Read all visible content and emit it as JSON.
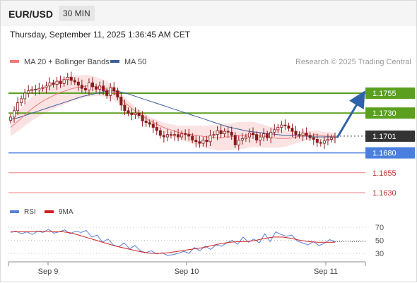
{
  "header": {
    "symbol": "EUR/USD",
    "timeframe": "30 MIN",
    "timestamp": "Thursday, September 11, 2025 1:36:45 AM CET"
  },
  "colors": {
    "ma20": "#f07878",
    "ma50": "#3a5f9a",
    "bollinger_fill": "#fadcdc",
    "candle": "#8b1a1a",
    "resistance": "#5aa01e",
    "support": "#4a7fe0",
    "support_light": "#f08080",
    "current": "#333333",
    "arrow": "#2f62a8",
    "rsi": "#5a7fd8",
    "rsi_ma": "#d02020"
  },
  "chart_data": [
    {
      "type": "line",
      "title": "",
      "legend": [
        "MA 20 + Bollinger Bands",
        "MA 50"
      ],
      "legend_position": "top-left",
      "credit": "Research © 2025 Trading Central",
      "x_ticks": [
        "Sep 9",
        "Sep 10",
        "Sep 11"
      ],
      "ylim": [
        1.1615,
        1.1798
      ],
      "levels": [
        {
          "label": "1.1755",
          "value": 1.1755,
          "kind": "resistance"
        },
        {
          "label": "1.1730",
          "value": 1.173,
          "kind": "resistance"
        },
        {
          "label": "1.1701",
          "value": 1.1701,
          "kind": "current"
        },
        {
          "label": "1.1680",
          "value": 1.168,
          "kind": "support"
        },
        {
          "label": "1.1655",
          "value": 1.1655,
          "kind": "support_light"
        },
        {
          "label": "1.1630",
          "value": 1.163,
          "kind": "support_light"
        }
      ],
      "arrow": {
        "from": 1.1699,
        "to": 1.1755
      },
      "closes": [
        1.1725,
        1.1733,
        1.1743,
        1.1748,
        1.1755,
        1.1758,
        1.176,
        1.1759,
        1.1761,
        1.1762,
        1.1764,
        1.1768,
        1.1766,
        1.177,
        1.1767,
        1.1772,
        1.1775,
        1.1771,
        1.1769,
        1.1765,
        1.1761,
        1.1759,
        1.1768,
        1.1763,
        1.176,
        1.1764,
        1.1758,
        1.1752,
        1.1762,
        1.1758,
        1.175,
        1.174,
        1.1733,
        1.173,
        1.1728,
        1.173,
        1.1727,
        1.172,
        1.1718,
        1.1716,
        1.1712,
        1.1708,
        1.1702,
        1.17,
        1.1703,
        1.1702,
        1.1703,
        1.17,
        1.1704,
        1.1703,
        1.1701,
        1.1696,
        1.1694,
        1.1692,
        1.1696,
        1.1694,
        1.1702,
        1.1703,
        1.1708,
        1.1704,
        1.1707,
        1.1706,
        1.1702,
        1.169,
        1.1696,
        1.1698,
        1.17,
        1.1705,
        1.1703,
        1.1696,
        1.17,
        1.1704,
        1.1699,
        1.1706,
        1.1709,
        1.1712,
        1.1715,
        1.1714,
        1.1711,
        1.1707,
        1.1703,
        1.1702,
        1.1705,
        1.1702,
        1.1699,
        1.1697,
        1.1693,
        1.1692,
        1.1695,
        1.1697,
        1.1699,
        1.17
      ],
      "ma20": [
        1.1712,
        1.1717,
        1.1722,
        1.1728,
        1.1733,
        1.1738,
        1.1742,
        1.1746,
        1.1749,
        1.1752,
        1.1755,
        1.1757,
        1.1759,
        1.1761,
        1.1762,
        1.1763,
        1.1764,
        1.1764,
        1.1763,
        1.1762,
        1.176,
        1.1757,
        1.1753,
        1.1748,
        1.1743,
        1.1738,
        1.1733,
        1.1729,
        1.1725,
        1.1721,
        1.1718,
        1.1715,
        1.1712,
        1.171,
        1.1708,
        1.1706,
        1.1705,
        1.1704,
        1.1703,
        1.1702,
        1.1701,
        1.17,
        1.17,
        1.1699,
        1.1699,
        1.17,
        1.17,
        1.1701,
        1.1702,
        1.1702,
        1.1703,
        1.1703,
        1.1702,
        1.1701,
        1.17,
        1.1699,
        1.1698,
        1.1698,
        1.1698,
        1.1699,
        1.17,
        1.1701,
        1.1702,
        1.1702,
        1.1703,
        1.1702,
        1.1701,
        1.1701,
        1.17
      ],
      "ma50": [
        1.1722,
        1.1724,
        1.1727,
        1.173,
        1.1733,
        1.1736,
        1.1739,
        1.1742,
        1.1745,
        1.1748,
        1.1751,
        1.1753,
        1.1755,
        1.1757,
        1.1758,
        1.1757,
        1.1755,
        1.1752,
        1.1749,
        1.1746,
        1.1743,
        1.174,
        1.1737,
        1.1734,
        1.1731,
        1.1728,
        1.1725,
        1.1722,
        1.1719,
        1.1716,
        1.1713,
        1.1711,
        1.1709,
        1.1707,
        1.1706,
        1.1705,
        1.1704,
        1.1703,
        1.1702,
        1.1702,
        1.1701,
        1.1701,
        1.17,
        1.17,
        1.17,
        1.17
      ]
    },
    {
      "type": "line",
      "legend": [
        "RSI",
        "9MA"
      ],
      "legend_position": "top-left",
      "ylim": [
        20,
        80
      ],
      "y_ticks": [
        "70",
        "50",
        "30"
      ],
      "rsi": [
        62,
        64,
        60,
        63,
        59,
        64,
        62,
        67,
        61,
        63,
        66,
        60,
        64,
        62,
        65,
        55,
        58,
        47,
        52,
        43,
        40,
        46,
        37,
        42,
        34,
        31,
        34,
        29,
        31,
        27,
        28,
        30,
        33,
        30,
        39,
        34,
        41,
        36,
        43,
        41,
        46,
        50,
        44,
        55,
        47,
        52,
        46,
        60,
        48,
        63,
        59,
        56,
        58,
        49,
        46,
        43,
        48,
        42,
        45,
        51,
        48
      ],
      "rsi_ma": [
        63,
        63,
        63,
        64,
        64,
        63,
        63,
        61,
        57,
        53,
        49,
        45,
        41,
        38,
        35,
        32,
        30,
        30,
        31,
        33,
        35,
        37,
        39,
        42,
        45,
        47,
        48,
        48,
        50,
        53,
        55,
        55,
        53,
        50,
        48,
        47,
        47,
        47
      ]
    }
  ]
}
